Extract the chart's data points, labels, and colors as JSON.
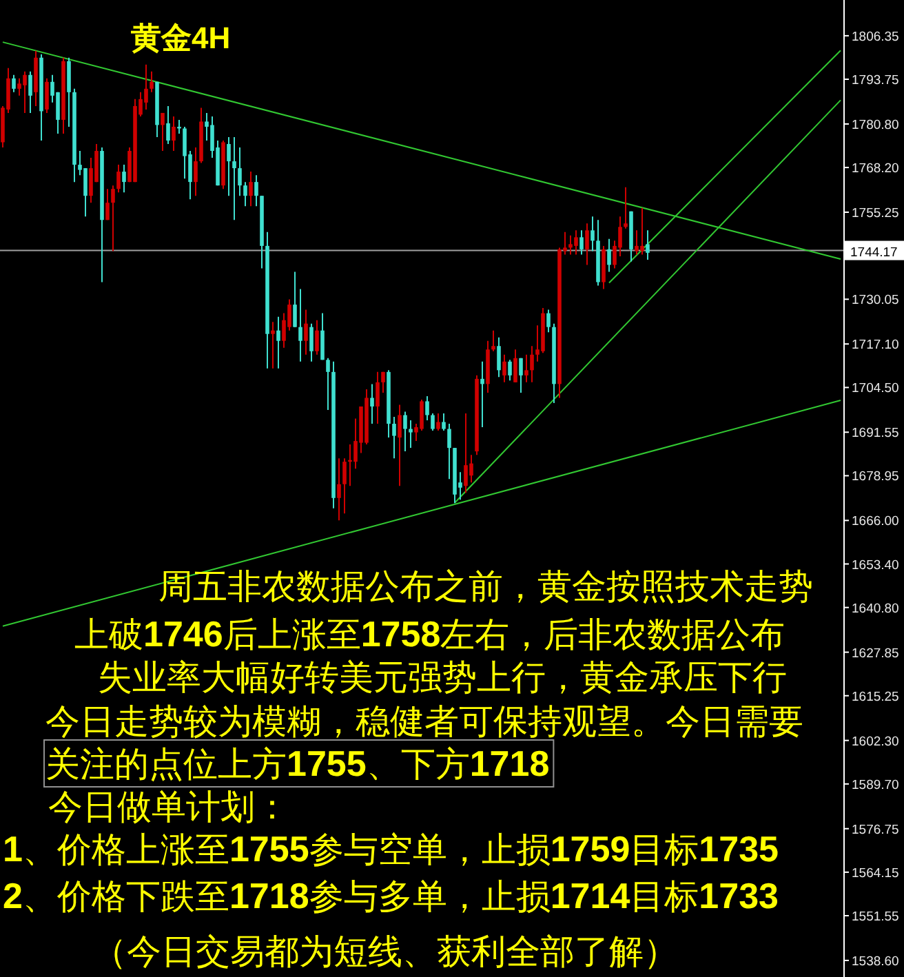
{
  "chart_data": {
    "type": "candlestick",
    "title": "黄金4H",
    "categories": [
      null,
      null,
      null,
      null,
      null,
      null,
      null,
      null,
      null,
      null,
      null,
      null,
      null,
      null,
      null,
      null,
      null,
      null,
      null,
      null,
      null,
      null,
      null,
      null,
      null,
      null,
      null,
      null,
      null,
      null,
      null,
      null,
      null,
      null,
      null,
      null,
      null,
      null,
      null,
      null,
      null,
      null,
      null,
      null,
      null,
      null,
      null,
      null,
      null,
      null,
      null,
      null,
      null,
      null,
      null,
      null,
      null,
      null,
      null,
      null,
      null,
      null,
      null,
      null,
      null,
      null,
      null,
      null,
      null,
      null,
      null,
      null,
      null,
      null,
      null,
      null,
      null,
      null,
      null,
      null,
      null,
      null,
      null,
      null,
      null,
      null,
      null,
      null,
      null,
      null,
      null,
      null,
      null,
      null,
      null,
      null,
      null,
      null,
      null,
      null,
      null,
      null,
      null,
      null,
      null,
      null,
      null,
      null,
      null,
      null,
      null,
      null,
      null,
      null,
      null,
      null,
      null,
      null,
      null,
      null,
      null,
      null,
      null,
      null,
      null,
      null,
      null,
      null,
      null,
      null,
      null,
      null,
      null,
      null,
      null,
      null,
      null,
      null,
      null,
      null,
      null,
      null,
      null,
      null,
      null,
      null,
      null,
      null,
      null,
      null,
      null,
      null,
      null
    ],
    "ohlc": [
      [
        1775.5,
        1786,
        1774,
        1785.5
      ],
      [
        1785,
        1797,
        1784,
        1794
      ],
      [
        1794,
        1795,
        1790,
        1791
      ],
      [
        1791,
        1794,
        1789,
        1792.5
      ],
      [
        1792,
        1796,
        1784,
        1795
      ],
      [
        1795,
        1796,
        1784,
        1789
      ],
      [
        1790,
        1802,
        1786,
        1800
      ],
      [
        1800,
        1801,
        1776,
        1784.5
      ],
      [
        1785,
        1794,
        1784,
        1793
      ],
      [
        1793,
        1795,
        1787,
        1789
      ],
      [
        1790,
        1790,
        1778,
        1782
      ],
      [
        1782,
        1800,
        1778,
        1799
      ],
      [
        1799,
        1800,
        1780,
        1790
      ],
      [
        1790,
        1791,
        1764,
        1769
      ],
      [
        1769,
        1773,
        1766,
        1767.5
      ],
      [
        1768,
        1768,
        1754,
        1760
      ],
      [
        1760,
        1771,
        1758,
        1768
      ],
      [
        1764,
        1775,
        1764,
        1773
      ],
      [
        1773,
        1774,
        1735,
        1753
      ],
      [
        1753,
        1762,
        1753,
        1758
      ],
      [
        1758,
        1763,
        1744,
        1762
      ],
      [
        1762,
        1769,
        1761,
        1767
      ],
      [
        1767,
        1769,
        1761,
        1764
      ],
      [
        1764,
        1774,
        1764,
        1773
      ],
      [
        1764,
        1788,
        1764,
        1786
      ],
      [
        1783.5,
        1790,
        1783,
        1788
      ],
      [
        1787,
        1798,
        1785,
        1791
      ],
      [
        1791,
        1796,
        1790,
        1793
      ],
      [
        1793,
        1793,
        1777,
        1780.5
      ],
      [
        1780.5,
        1784,
        1773,
        1784
      ],
      [
        1781,
        1786,
        1775,
        1776
      ],
      [
        1776,
        1783,
        1773,
        1780
      ],
      [
        1780,
        1782,
        1778,
        1779.5
      ],
      [
        1779.5,
        1780,
        1765,
        1771.5
      ],
      [
        1772,
        1773,
        1759,
        1764
      ],
      [
        1764,
        1774,
        1760,
        1770
      ],
      [
        1770,
        1785.5,
        1769.5,
        1781.5
      ],
      [
        1781.5,
        1784,
        1776,
        1780
      ],
      [
        1780.5,
        1783,
        1771,
        1773
      ],
      [
        1774,
        1776,
        1763,
        1763
      ],
      [
        1763,
        1776,
        1762,
        1775.5
      ],
      [
        1775,
        1777,
        1760,
        1770
      ],
      [
        1770,
        1777,
        1753,
        1768
      ],
      [
        1768,
        1774,
        1760,
        1763
      ],
      [
        1763,
        1764,
        1757,
        1760
      ],
      [
        1760,
        1767,
        1757,
        1764
      ],
      [
        1764,
        1766,
        1757,
        1760
      ],
      [
        1760,
        1760,
        1739,
        1745.5
      ],
      [
        1745.5,
        1749.5,
        1710,
        1720
      ],
      [
        1720,
        1723.5,
        1710,
        1721
      ],
      [
        1721,
        1725,
        1710,
        1718
      ],
      [
        1718,
        1726,
        1716,
        1724
      ],
      [
        1722,
        1730,
        1721,
        1728.5
      ],
      [
        1728.5,
        1738,
        1722,
        1722
      ],
      [
        1722,
        1733,
        1712,
        1718
      ],
      [
        1718,
        1727,
        1714,
        1723
      ],
      [
        1722,
        1723,
        1712,
        1715
      ],
      [
        1715,
        1724,
        1714,
        1721
      ],
      [
        1721,
        1726,
        1712.5,
        1712.5
      ],
      [
        1712.5,
        1713,
        1698,
        1709
      ],
      [
        1709,
        1712,
        1669.5,
        1672.5
      ],
      [
        1672.5,
        1684,
        1666,
        1676.5
      ],
      [
        1676.5,
        1684,
        1668,
        1683
      ],
      [
        1683,
        1688,
        1676,
        1683.5
      ],
      [
        1683,
        1695.5,
        1681,
        1689
      ],
      [
        1688.5,
        1699,
        1685.5,
        1699
      ],
      [
        1688.5,
        1704,
        1688,
        1701.5
      ],
      [
        1701.5,
        1705.5,
        1694,
        1699
      ],
      [
        1699,
        1709,
        1694,
        1706
      ],
      [
        1706,
        1709,
        1703,
        1709
      ],
      [
        1709,
        1709.5,
        1690,
        1694
      ],
      [
        1694,
        1696,
        1684,
        1690.5
      ],
      [
        1690,
        1699.5,
        1676,
        1696.5
      ],
      [
        1696.5,
        1697.5,
        1686,
        1692.5
      ],
      [
        1692.5,
        1695,
        1687,
        1691.5
      ],
      [
        1691.5,
        1694,
        1689,
        1693
      ],
      [
        1692.5,
        1701,
        1692,
        1700.5
      ],
      [
        1700.5,
        1702,
        1695,
        1696.5
      ],
      [
        1696.5,
        1697,
        1692,
        1692.5
      ],
      [
        1692.5,
        1697,
        1692,
        1694.5
      ],
      [
        1694.5,
        1697,
        1692,
        1692.5
      ],
      [
        1692.5,
        1694,
        1678,
        1687
      ],
      [
        1687,
        1687,
        1671,
        1673.5
      ],
      [
        1677,
        1680,
        1672,
        1675.5
      ],
      [
        1676,
        1697,
        1674,
        1682
      ],
      [
        1679,
        1685,
        1677,
        1682.5
      ],
      [
        1686,
        1708,
        1685,
        1707
      ],
      [
        1707,
        1712,
        1693,
        1705.5
      ],
      [
        1705.5,
        1718,
        1703,
        1715.5
      ],
      [
        1715.5,
        1721,
        1715,
        1716.5
      ],
      [
        1716.5,
        1719,
        1707.5,
        1709.5
      ],
      [
        1708,
        1714,
        1706,
        1712
      ],
      [
        1712,
        1712.5,
        1706.5,
        1708
      ],
      [
        1706,
        1715.5,
        1706,
        1713
      ],
      [
        1713,
        1713,
        1703,
        1708
      ],
      [
        1708,
        1714,
        1706,
        1709.5
      ],
      [
        1709.5,
        1716.5,
        1706,
        1714
      ],
      [
        1714,
        1722.5,
        1712,
        1715.5
      ],
      [
        1715,
        1727.5,
        1714.5,
        1726
      ],
      [
        1726,
        1727,
        1720.5,
        1722
      ],
      [
        1722,
        1723,
        1700,
        1705.5
      ],
      [
        1705.5,
        1745,
        1701.5,
        1744.5
      ],
      [
        1744,
        1749.5,
        1743,
        1745
      ],
      [
        1745,
        1748.5,
        1743,
        1746
      ],
      [
        1745.5,
        1750,
        1743,
        1748
      ],
      [
        1748,
        1750,
        1743,
        1744.5
      ],
      [
        1744.5,
        1752,
        1740,
        1750
      ],
      [
        1750,
        1754,
        1744,
        1747
      ],
      [
        1747,
        1753,
        1734,
        1735
      ],
      [
        1735,
        1745.5,
        1733,
        1744.5
      ],
      [
        1744.5,
        1747.5,
        1738,
        1740
      ],
      [
        1740,
        1747,
        1739,
        1745.5
      ],
      [
        1745,
        1754,
        1742.5,
        1751
      ],
      [
        1751,
        1762.5,
        1750.5,
        1752
      ],
      [
        1755.5,
        1755.5,
        1741,
        1744.5
      ],
      [
        1744,
        1750,
        1743,
        1745.5
      ],
      [
        1744,
        1756.5,
        1743,
        1745.5
      ],
      [
        1746,
        1750,
        1741.5,
        1743.5
      ],
      null,
      null,
      null,
      null,
      null,
      null,
      null,
      null,
      null,
      null,
      null,
      null,
      null,
      null,
      null,
      null,
      null,
      null,
      null,
      null,
      null,
      null,
      null,
      null,
      null,
      null,
      null,
      null,
      null,
      null,
      null,
      null,
      null,
      null,
      null
    ],
    "colors": [
      "#d00000",
      "#d00000",
      "#40e0d0",
      "#d00000",
      "#d00000",
      "#40e0d0",
      "#d00000",
      "#40e0d0",
      "#d00000",
      "#40e0d0",
      "#40e0d0",
      "#d00000",
      "#40e0d0",
      "#40e0d0",
      "#40e0d0",
      "#40e0d0",
      "#d00000",
      "#d00000",
      "#40e0d0",
      "#d00000",
      "#d00000",
      "#d00000",
      "#40e0d0",
      "#d00000",
      "#d00000",
      "#d00000",
      "#d00000",
      "#d00000",
      "#40e0d0",
      "#d00000",
      "#40e0d0",
      "#d00000",
      "#40e0d0",
      "#40e0d0",
      "#40e0d0",
      "#d00000",
      "#d00000",
      "#40e0d0",
      "#40e0d0",
      "#40e0d0",
      "#d00000",
      "#40e0d0",
      "#40e0d0",
      "#40e0d0",
      "#40e0d0",
      "#d00000",
      "#40e0d0",
      "#40e0d0",
      "#40e0d0",
      "#d00000",
      "#40e0d0",
      "#d00000",
      "#d00000",
      "#40e0d0",
      "#40e0d0",
      "#d00000",
      "#40e0d0",
      "#d00000",
      "#40e0d0",
      "#40e0d0",
      "#40e0d0",
      "#d00000",
      "#d00000",
      "#d00000",
      "#d00000",
      "#d00000",
      "#d00000",
      "#40e0d0",
      "#d00000",
      "#d00000",
      "#40e0d0",
      "#40e0d0",
      "#d00000",
      "#40e0d0",
      "#40e0d0",
      "#d00000",
      "#d00000",
      "#40e0d0",
      "#40e0d0",
      "#d00000",
      "#40e0d0",
      "#40e0d0",
      "#40e0d0",
      "#40e0d0",
      "#d00000",
      "#d00000",
      "#d00000",
      "#40e0d0",
      "#d00000",
      "#d00000",
      "#40e0d0",
      "#d00000",
      "#40e0d0",
      "#d00000",
      "#40e0d0",
      "#d00000",
      "#d00000",
      "#d00000",
      "#d00000",
      "#40e0d0",
      "#40e0d0",
      "#d00000",
      "#d00000",
      "#d00000",
      "#d00000",
      "#40e0d0",
      "#d00000",
      "#40e0d0",
      "#40e0d0",
      "#d00000",
      "#40e0d0",
      "#d00000",
      "#d00000",
      "#d00000",
      "#40e0d0",
      "#d00000",
      "#d00000",
      "#40e0d0",
      null,
      null,
      null,
      null,
      null,
      null,
      null,
      null,
      null,
      null,
      null,
      null,
      null,
      null,
      null,
      null,
      null,
      null,
      null,
      null,
      null,
      null,
      null,
      null,
      null,
      null,
      null,
      null,
      null,
      null,
      null,
      null,
      null,
      null,
      null
    ],
    "series": [
      {
        "type": "line",
        "color": "#32c832",
        "values": [
          1804.5,
          null,
          null,
          null,
          null,
          null,
          null,
          null,
          null,
          null,
          null,
          null,
          null,
          null,
          null,
          null,
          null,
          null,
          null,
          null,
          null,
          null,
          null,
          null,
          null,
          null,
          null,
          null,
          null,
          null,
          null,
          null,
          null,
          null,
          null,
          null,
          null,
          null,
          null,
          null,
          null,
          null,
          null,
          null,
          null,
          null,
          null,
          null,
          null,
          null,
          null,
          null,
          null,
          null,
          null,
          null,
          null,
          null,
          null,
          null,
          null,
          null,
          null,
          null,
          null,
          null,
          null,
          null,
          null,
          null,
          null,
          null,
          null,
          null,
          null,
          null,
          null,
          null,
          null,
          null,
          null,
          null,
          null,
          null,
          null,
          null,
          null,
          null,
          null,
          null,
          null,
          null,
          null,
          null,
          null,
          null,
          null,
          null,
          null,
          null,
          null,
          null,
          null,
          null,
          null,
          null,
          null,
          null,
          null,
          null,
          null,
          null,
          null,
          null,
          null,
          null,
          null,
          null,
          null,
          null,
          null,
          null,
          null,
          null,
          null,
          null,
          null,
          null,
          null,
          null,
          null,
          null,
          null,
          null,
          null,
          null,
          null,
          null,
          null,
          null,
          null,
          null,
          null,
          null,
          null,
          null,
          null,
          null,
          null,
          null,
          null,
          null,
          1741.7
        ]
      },
      {
        "type": "line",
        "color": "#32c832",
        "values": [
          1635.4,
          null,
          null,
          null,
          null,
          null,
          null,
          null,
          null,
          null,
          null,
          null,
          null,
          null,
          null,
          null,
          null,
          null,
          null,
          null,
          null,
          null,
          null,
          null,
          null,
          null,
          null,
          null,
          null,
          null,
          null,
          null,
          null,
          null,
          null,
          null,
          null,
          null,
          null,
          null,
          null,
          null,
          null,
          null,
          null,
          null,
          null,
          null,
          null,
          null,
          null,
          null,
          null,
          null,
          null,
          null,
          null,
          null,
          null,
          null,
          null,
          null,
          null,
          null,
          null,
          null,
          null,
          null,
          null,
          null,
          null,
          null,
          null,
          null,
          null,
          null,
          null,
          null,
          null,
          null,
          null,
          null,
          null,
          null,
          null,
          null,
          null,
          null,
          null,
          null,
          null,
          null,
          null,
          null,
          null,
          null,
          null,
          null,
          null,
          null,
          null,
          null,
          null,
          null,
          null,
          null,
          null,
          null,
          null,
          null,
          null,
          null,
          null,
          null,
          null,
          null,
          null,
          null,
          null,
          null,
          null,
          null,
          null,
          null,
          null,
          null,
          null,
          null,
          null,
          null,
          null,
          null,
          null,
          null,
          null,
          null,
          null,
          null,
          null,
          null,
          null,
          null,
          null,
          null,
          null,
          null,
          null,
          null,
          null,
          null,
          null,
          null,
          1700.8
        ]
      },
      {
        "type": "line",
        "color": "#32c832",
        "values": [
          null,
          null,
          null,
          null,
          null,
          null,
          null,
          null,
          null,
          null,
          null,
          null,
          null,
          null,
          null,
          null,
          null,
          null,
          null,
          null,
          null,
          null,
          null,
          null,
          null,
          null,
          null,
          null,
          null,
          null,
          null,
          null,
          null,
          null,
          null,
          null,
          null,
          null,
          null,
          null,
          null,
          null,
          null,
          null,
          null,
          null,
          null,
          null,
          null,
          null,
          null,
          null,
          null,
          null,
          null,
          null,
          null,
          null,
          null,
          null,
          null,
          null,
          null,
          null,
          null,
          null,
          null,
          null,
          null,
          null,
          null,
          null,
          null,
          null,
          null,
          null,
          null,
          null,
          null,
          null,
          null,
          null,
          1671.1,
          null,
          null,
          null,
          null,
          null,
          null,
          null,
          null,
          null,
          null,
          null,
          null,
          null,
          null,
          null,
          null,
          null,
          null,
          null,
          null,
          null,
          null,
          null,
          null,
          null,
          null,
          null,
          null,
          null,
          null,
          null,
          null,
          null,
          null,
          null,
          null,
          null,
          null,
          null,
          null,
          null,
          null,
          null,
          null,
          null,
          null,
          null,
          null,
          null,
          null,
          null,
          null,
          null,
          null,
          null,
          null,
          null,
          null,
          null,
          null,
          null,
          null,
          null,
          null,
          null,
          null,
          null,
          null,
          null,
          1787.7
        ]
      },
      {
        "type": "line",
        "color": "#32c832",
        "values": [
          null,
          null,
          null,
          null,
          null,
          null,
          null,
          null,
          null,
          null,
          null,
          null,
          null,
          null,
          null,
          null,
          null,
          null,
          null,
          null,
          null,
          null,
          null,
          null,
          null,
          null,
          null,
          null,
          null,
          null,
          null,
          null,
          null,
          null,
          null,
          null,
          null,
          null,
          null,
          null,
          null,
          null,
          null,
          null,
          null,
          null,
          null,
          null,
          null,
          null,
          null,
          null,
          null,
          null,
          null,
          null,
          null,
          null,
          null,
          null,
          null,
          null,
          null,
          null,
          null,
          null,
          null,
          null,
          null,
          null,
          null,
          null,
          null,
          null,
          null,
          null,
          null,
          null,
          null,
          null,
          null,
          null,
          null,
          null,
          null,
          null,
          null,
          null,
          null,
          null,
          null,
          null,
          null,
          null,
          null,
          null,
          null,
          null,
          null,
          null,
          null,
          null,
          null,
          null,
          null,
          null,
          null,
          null,
          null,
          null,
          1734.8,
          null,
          null,
          null,
          null,
          null,
          null,
          null,
          null,
          null,
          null,
          null,
          null,
          null,
          null,
          null,
          null,
          null,
          null,
          null,
          null,
          null,
          null,
          null,
          null,
          null,
          null,
          null,
          null,
          null,
          null,
          null,
          null,
          null,
          null,
          null,
          null,
          null,
          null,
          null,
          null,
          null,
          1802.1
        ]
      }
    ],
    "ylim": [
      1533.8,
      1816.7
    ],
    "yticks": [
      1806.35,
      1793.75,
      {
        "value": 1780.8,
        "label": "1780.80"
      },
      {
        "value": 1768.2,
        "label": "1768.20"
      },
      1755.25,
      1730.05,
      {
        "value": 1717.1,
        "label": "1717.10"
      },
      {
        "value": 1704.5,
        "label": "1704.50"
      },
      1691.55,
      1678.95,
      {
        "value": 1666,
        "label": "1666.00"
      },
      {
        "value": 1653.4,
        "label": "1653.40"
      },
      {
        "value": 1640.8,
        "label": "1640.80"
      },
      1627.85,
      1615.25,
      {
        "value": 1602.3,
        "label": "1602.30"
      },
      {
        "value": 1589.7,
        "label": "1589.70"
      },
      1576.75,
      1564.15,
      1551.55,
      {
        "value": 1538.6,
        "label": "1538.60"
      }
    ],
    "tick_labels": "y",
    "ref_lines": [
      {
        "axis": "y",
        "value": 1744.17,
        "label": "1744.17",
        "color": "#a0a0a0"
      }
    ],
    "annotations": [
      "周五非农数据公布之前，黄金按照技术走势",
      "上破1746后上涨至1758左右，后非农数据公布",
      "失业率大幅好转美元强势上行，黄金承压下行",
      "今日走势较为模糊，稳健者可保持观望。今日需要",
      "关注的点位上方1755、下方1718",
      "今日做单计划：",
      "1、价格上涨至1755参与空单，止损1759目标1735",
      "2、价格下跌至1718参与多单，止损1714目标1733",
      "（今日交易都为短线、获利全部了解）"
    ]
  }
}
